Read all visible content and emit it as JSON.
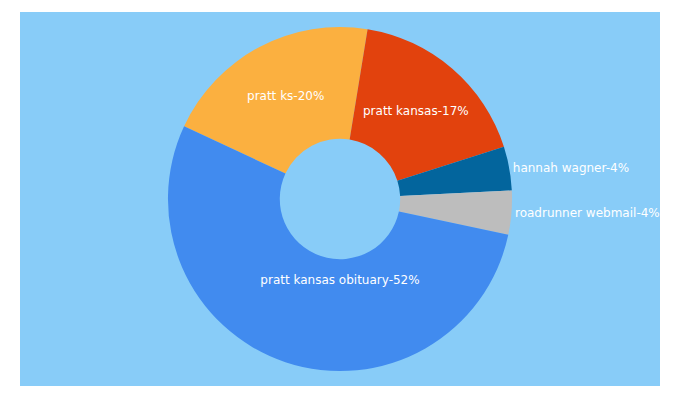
{
  "chart_data": {
    "type": "pie",
    "categories": [
      "pratt ks",
      "pratt kansas",
      "hannah wagner",
      "roadrunner webmail",
      "pratt kansas obituary"
    ],
    "values": [
      20,
      17,
      4,
      4,
      52
    ],
    "value_labels": [
      "pratt ks-20%",
      "pratt kansas-17%",
      "hannah wagner-4%",
      "roadrunner webmail-4%",
      "pratt kansas obituary-52%"
    ],
    "colors": [
      "#fbb040",
      "#e2420d",
      "#03659d",
      "#bdbdbd",
      "#418bef"
    ],
    "data_labels": true
  }
}
